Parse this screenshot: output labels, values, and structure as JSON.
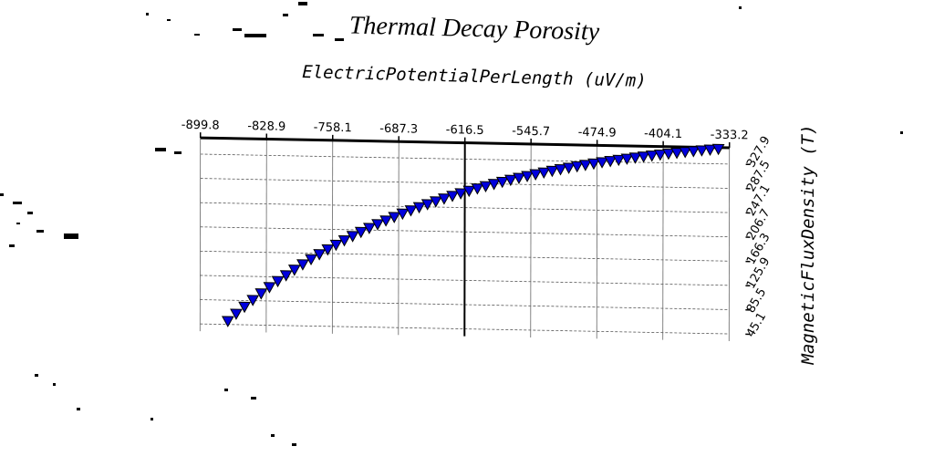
{
  "colors": {
    "background": "#ffffff",
    "marker_fill": "#0000dd",
    "marker_stroke": "#000000",
    "grid": "#555555",
    "axis": "#000000"
  },
  "chart_data": {
    "type": "scatter",
    "title": "Thermal Decay Porosity",
    "xlabel": "ElectricPotentialPerLength (uV/m)",
    "ylabel": "MagneticFluxDensity (T)",
    "x_axis_position": "top",
    "y_axis_position": "right",
    "xlim": [
      -899.8,
      -333.2
    ],
    "ylim": [
      45.1,
      355
    ],
    "grid": true,
    "x_ticks": [
      "-899.8",
      "-828.9",
      "-758.1",
      "-687.3",
      "-616.5",
      "-545.7",
      "-474.9",
      "-404.1",
      "-333.2"
    ],
    "y_ticks": [
      "45.1",
      "85.5",
      "125.9",
      "166.3",
      "206.7",
      "247.1",
      "287.5",
      "327.9"
    ],
    "marker": "triangle-down",
    "series": [
      {
        "x_start": -870,
        "x_end": -345,
        "n_points": 60,
        "y_min": 50,
        "y_max": 352,
        "curve": "exponential-saturation",
        "shape_k": 2.2
      }
    ]
  }
}
